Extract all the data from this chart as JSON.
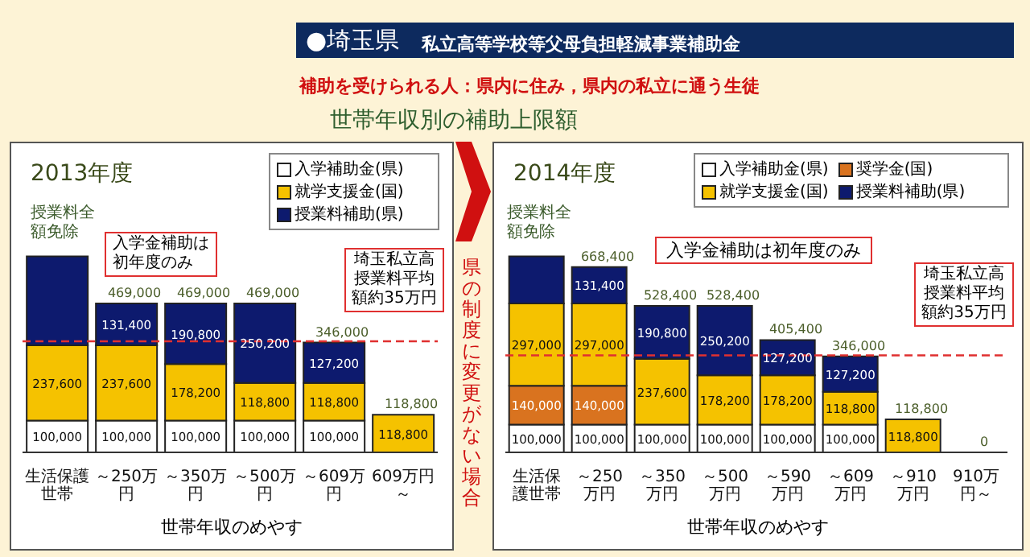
{
  "chart_data": [
    {
      "type": "bar",
      "title": "2013年度",
      "xlabel": "世帯年収のめやす",
      "stacked": true,
      "legend": "top right",
      "categories": [
        "生活保護世帯",
        "～250万円",
        "～350万円",
        "～500万円",
        "～609万円",
        "609万円～"
      ],
      "series": [
        {
          "name": "入学補助金(県)",
          "color": "#ffffff",
          "values": [
            100000,
            100000,
            100000,
            100000,
            100000,
            null
          ],
          "value_labels": [
            "100,000",
            "100,000",
            "100,000",
            "100,000",
            "100,000",
            null
          ]
        },
        {
          "name": "就学支援金(国)",
          "color": "#f5c200",
          "values": [
            237600,
            237600,
            178200,
            118800,
            118800,
            118800
          ],
          "value_labels": [
            "237,600",
            "237,600",
            "178,200",
            "118,800",
            "118,800",
            "118,800"
          ]
        },
        {
          "name": "授業料補助(県)",
          "color": "#0d1a6e",
          "values": [
            280000,
            131400,
            190800,
            250200,
            127200,
            null
          ],
          "value_labels": [
            null,
            "131,400",
            "190,800",
            "250,200",
            "127,200",
            null
          ]
        }
      ],
      "totals": [
        null,
        "469,000",
        "469,000",
        "469,000",
        "346,000",
        "118,800"
      ],
      "ref_lines": [
        {
          "axis": "y",
          "value": 350000,
          "label": "埼玉私立高授業料平均額約35万円",
          "color": "#e03030",
          "line_style": "dashed"
        }
      ],
      "annotations": [
        "●埼玉県",
        "私立高等学校等父母負担軽減事業補助金",
        "補助を受けられる人：県内に住み，県内の私立に通う生徒",
        "世帯年収別の補助上限額",
        "入学金補助は初年度のみ",
        "授業料全額免除",
        "県の制度に変更がない場合"
      ]
    },
    {
      "type": "bar",
      "title": "2014年度",
      "xlabel": "世帯年収のめやす",
      "stacked": true,
      "legend": "top right",
      "categories": [
        "生活保護世帯",
        "～250万円",
        "～350万円",
        "～500万円",
        "～590万円",
        "～609万円",
        "～910万円",
        "910万円～"
      ],
      "series": [
        {
          "name": "入学補助金(県)",
          "color": "#ffffff",
          "values": [
            100000,
            100000,
            100000,
            100000,
            100000,
            100000,
            null,
            0
          ],
          "value_labels": [
            "100,000",
            "100,000",
            "100,000",
            "100,000",
            "100,000",
            "100,000",
            null,
            null
          ]
        },
        {
          "name": "奨学金(国)",
          "color": "#d9731f",
          "values": [
            140000,
            140000,
            null,
            null,
            null,
            null,
            null,
            null
          ],
          "value_labels": [
            "140,000",
            "140,000",
            null,
            null,
            null,
            null,
            null,
            null
          ]
        },
        {
          "name": "就学支援金(国)",
          "color": "#f5c200",
          "values": [
            297000,
            297000,
            237600,
            178200,
            178200,
            118800,
            118800,
            null
          ],
          "value_labels": [
            "297,000",
            "297,000",
            "237,600",
            "178,200",
            "178,200",
            "118,800",
            "118,800",
            null
          ]
        },
        {
          "name": "授業料補助(県)",
          "color": "#0d1a6e",
          "values": [
            170000,
            131400,
            190800,
            250200,
            127200,
            127200,
            null,
            null
          ],
          "value_labels": [
            null,
            "131,400",
            "190,800",
            "250,200",
            "127,200",
            "127,200",
            null,
            null
          ]
        }
      ],
      "totals": [
        null,
        "668,400",
        "528,400",
        "528,400",
        "405,400",
        "346,000",
        "118,800",
        "0"
      ],
      "ref_lines": [
        {
          "axis": "y",
          "value": 350000,
          "label": "埼玉私立高授業料平均額約35万円",
          "color": "#e03030",
          "line_style": "dashed"
        }
      ],
      "annotations": [
        "入学金補助は初年度のみ",
        "授業料全額免除"
      ]
    }
  ]
}
